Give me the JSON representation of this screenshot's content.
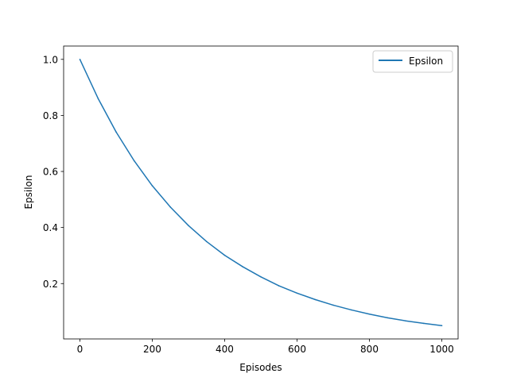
{
  "chart_data": {
    "type": "line",
    "title": "",
    "xlabel": "Episodes",
    "ylabel": "Epsilon",
    "xlim": [
      -45,
      1045
    ],
    "ylim": [
      0.0025,
      1.0475
    ],
    "xticks": [
      0,
      200,
      400,
      600,
      800,
      1000
    ],
    "xtick_labels": [
      "0",
      "200",
      "400",
      "600",
      "800",
      "1000"
    ],
    "yticks": [
      0.2,
      0.4,
      0.6,
      0.8,
      1.0
    ],
    "ytick_labels": [
      "0.2",
      "0.4",
      "0.6",
      "0.8",
      "1.0"
    ],
    "grid": false,
    "legend_position": "upper-right",
    "series": [
      {
        "name": "Epsilon",
        "color": "#1f77b4",
        "x": [
          0,
          50,
          100,
          150,
          200,
          250,
          300,
          350,
          400,
          450,
          500,
          550,
          600,
          650,
          700,
          750,
          800,
          850,
          900,
          950,
          1000
        ],
        "y": [
          1.0,
          0.861,
          0.741,
          0.638,
          0.549,
          0.473,
          0.407,
          0.35,
          0.301,
          0.26,
          0.224,
          0.192,
          0.166,
          0.143,
          0.123,
          0.106,
          0.091,
          0.078,
          0.067,
          0.058,
          0.05
        ]
      }
    ]
  }
}
